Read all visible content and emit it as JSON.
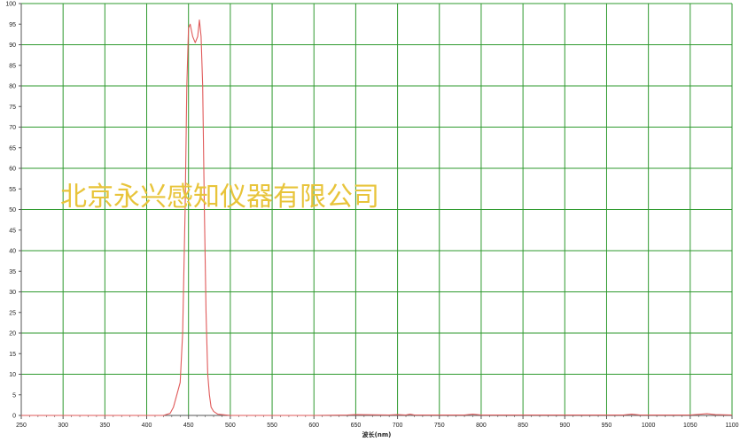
{
  "chart_data": {
    "type": "line",
    "xlabel": "波长(nm)",
    "ylabel": "",
    "xlim": [
      250,
      1100
    ],
    "ylim": [
      0,
      100
    ],
    "x_ticks": [
      250,
      300,
      350,
      400,
      450,
      500,
      550,
      600,
      650,
      700,
      750,
      800,
      850,
      900,
      950,
      1000,
      1050,
      1100
    ],
    "y_ticks": [
      0,
      5,
      10,
      15,
      20,
      25,
      30,
      35,
      40,
      45,
      50,
      55,
      60,
      65,
      70,
      75,
      80,
      85,
      90,
      95,
      100
    ],
    "grid": true,
    "series": [
      {
        "color": "#e05a5a",
        "x": [
          250,
          420,
          428,
          432,
          436,
          440,
          443,
          446,
          448,
          450,
          452,
          455,
          458,
          461,
          463,
          465,
          467,
          469,
          471,
          473,
          475,
          477,
          480,
          485,
          500,
          550,
          600,
          640,
          650,
          690,
          700,
          710,
          715,
          720,
          780,
          790,
          800,
          970,
          980,
          990,
          1050,
          1070,
          1080,
          1100
        ],
        "y": [
          0,
          0,
          0.5,
          2,
          5,
          8,
          20,
          50,
          80,
          94,
          95,
          92,
          90.5,
          92,
          96,
          92,
          80,
          50,
          25,
          10,
          5,
          2,
          1,
          0.3,
          0,
          0,
          0,
          0.1,
          0.2,
          0.1,
          0.2,
          0.1,
          0.3,
          0.1,
          0.1,
          0.3,
          0.1,
          0.1,
          0.3,
          0.1,
          0.1,
          0.4,
          0.2,
          0.1
        ]
      }
    ]
  },
  "colors": {
    "grid": "#2e9a2e",
    "line": "#e05a5a",
    "axis": "#555555",
    "watermark": "#e8c43a"
  },
  "watermark_text": "北京永兴感知仪器有限公司"
}
